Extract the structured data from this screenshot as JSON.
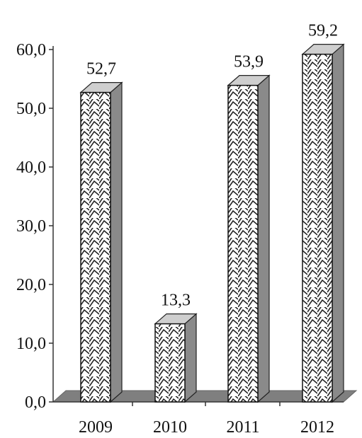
{
  "chart_data": {
    "type": "bar",
    "categories": [
      "2009",
      "2010",
      "2011",
      "2012"
    ],
    "values": [
      52.7,
      13.3,
      53.9,
      59.2
    ],
    "data_labels": [
      "52,7",
      "13,3",
      "53,9",
      "59,2"
    ],
    "yticks": [
      0,
      10,
      20,
      30,
      40,
      50,
      60
    ],
    "ytick_labels": [
      "0,0",
      "10,0",
      "20,0",
      "30,0",
      "40,0",
      "50,0",
      "60,0"
    ],
    "ylim": [
      0,
      60
    ],
    "title": "",
    "xlabel": "",
    "ylabel": "",
    "grid": false,
    "legend": "none",
    "style": "3d-bar",
    "bar_fill_pattern": "crosshatch",
    "colors": {
      "bar_front": "#ffffff",
      "bar_hatch": "#222222",
      "bar_side": "#8a8a8a",
      "bar_top": "#cfcfcf",
      "floor": "#7f7f7f",
      "axis": "#333333",
      "text": "#111111"
    }
  }
}
